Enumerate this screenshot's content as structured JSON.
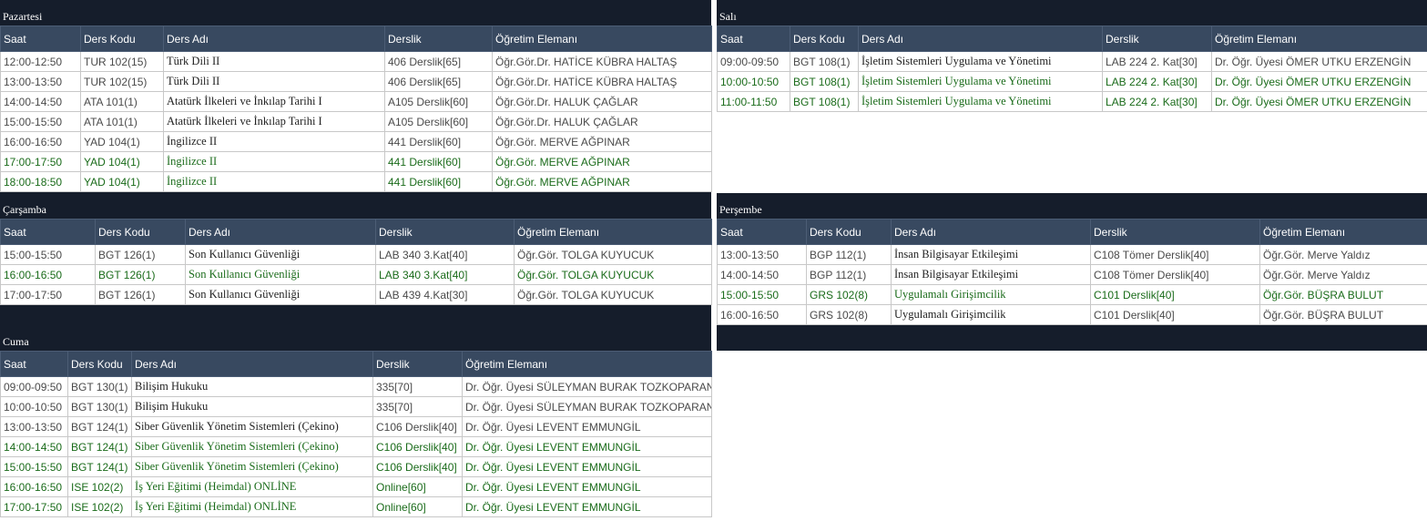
{
  "colors": {
    "title_bg": "#151d2b",
    "header_bg": "#384960",
    "active_text": "#1a6b1a",
    "normal_text": "#4a4a4a"
  },
  "headers": {
    "saat": "Saat",
    "kod": "Ders Kodu",
    "ad": "Ders Adı",
    "derslik": "Derslik",
    "ogretim": "Öğretim Elemanı"
  },
  "days": {
    "pazartesi": {
      "title": "Pazartesi",
      "rows": [
        {
          "saat": "12:00-12:50",
          "kod": "TUR 102(15)",
          "ad": "Türk Dili II",
          "derslik": "406 Derslik[65]",
          "ogretim": "Öğr.Gör.Dr. HATİCE KÜBRA HALTAŞ",
          "active": false
        },
        {
          "saat": "13:00-13:50",
          "kod": "TUR 102(15)",
          "ad": "Türk Dili II",
          "derslik": "406 Derslik[65]",
          "ogretim": "Öğr.Gör.Dr. HATİCE KÜBRA HALTAŞ",
          "active": false
        },
        {
          "saat": "14:00-14:50",
          "kod": "ATA 101(1)",
          "ad": "Atatürk İlkeleri ve İnkılap Tarihi I",
          "derslik": "A105 Derslik[60]",
          "ogretim": "Öğr.Gör.Dr. HALUK ÇAĞLAR",
          "active": false
        },
        {
          "saat": "15:00-15:50",
          "kod": "ATA 101(1)",
          "ad": "Atatürk İlkeleri ve İnkılap Tarihi I",
          "derslik": "A105 Derslik[60]",
          "ogretim": "Öğr.Gör.Dr. HALUK ÇAĞLAR",
          "active": false
        },
        {
          "saat": "16:00-16:50",
          "kod": "YAD 104(1)",
          "ad": "İngilizce II",
          "derslik": "441 Derslik[60]",
          "ogretim": "Öğr.Gör. MERVE AĞPINAR",
          "active": false
        },
        {
          "saat": "17:00-17:50",
          "kod": "YAD 104(1)",
          "ad": "İngilizce II",
          "derslik": "441 Derslik[60]",
          "ogretim": "Öğr.Gör. MERVE AĞPINAR",
          "active": true
        },
        {
          "saat": "18:00-18:50",
          "kod": "YAD 104(1)",
          "ad": "İngilizce II",
          "derslik": "441 Derslik[60]",
          "ogretim": "Öğr.Gör. MERVE AĞPINAR",
          "active": true
        }
      ]
    },
    "sali": {
      "title": "Salı",
      "rows": [
        {
          "saat": "09:00-09:50",
          "kod": "BGT 108(1)",
          "ad": "İşletim Sistemleri Uygulama ve Yönetimi",
          "derslik": "LAB 224 2. Kat[30]",
          "ogretim": "Dr. Öğr. Üyesi ÖMER UTKU ERZENGİN",
          "active": false
        },
        {
          "saat": "10:00-10:50",
          "kod": "BGT 108(1)",
          "ad": "İşletim Sistemleri Uygulama ve Yönetimi",
          "derslik": "LAB 224 2. Kat[30]",
          "ogretim": "Dr. Öğr. Üyesi ÖMER UTKU ERZENGİN",
          "active": true
        },
        {
          "saat": "11:00-11:50",
          "kod": "BGT 108(1)",
          "ad": "İşletim Sistemleri Uygulama ve Yönetimi",
          "derslik": "LAB 224 2. Kat[30]",
          "ogretim": "Dr. Öğr. Üyesi ÖMER UTKU ERZENGİN",
          "active": true
        }
      ]
    },
    "carsamba": {
      "title": "Çarşamba",
      "rows": [
        {
          "saat": "15:00-15:50",
          "kod": "BGT 126(1)",
          "ad": "Son Kullanıcı Güvenliği",
          "derslik": "LAB 340 3.Kat[40]",
          "ogretim": "Öğr.Gör. TOLGA KUYUCUK",
          "active": false
        },
        {
          "saat": "16:00-16:50",
          "kod": "BGT 126(1)",
          "ad": "Son Kullanıcı Güvenliği",
          "derslik": "LAB 340 3.Kat[40]",
          "ogretim": "Öğr.Gör. TOLGA KUYUCUK",
          "active": true
        },
        {
          "saat": "17:00-17:50",
          "kod": "BGT 126(1)",
          "ad": "Son Kullanıcı Güvenliği",
          "derslik": "LAB 439 4.Kat[30]",
          "ogretim": "Öğr.Gör. TOLGA KUYUCUK",
          "active": false
        }
      ]
    },
    "persembe": {
      "title": "Perşembe",
      "rows": [
        {
          "saat": "13:00-13:50",
          "kod": "BGP 112(1)",
          "ad": "İnsan Bilgisayar Etkileşimi",
          "derslik": "C108 Tömer Derslik[40]",
          "ogretim": "Öğr.Gör. Merve Yaldız",
          "active": false
        },
        {
          "saat": "14:00-14:50",
          "kod": "BGP 112(1)",
          "ad": "İnsan Bilgisayar Etkileşimi",
          "derslik": "C108 Tömer Derslik[40]",
          "ogretim": "Öğr.Gör. Merve Yaldız",
          "active": false
        },
        {
          "saat": "15:00-15:50",
          "kod": "GRS 102(8)",
          "ad": "Uygulamalı Girişimcilik",
          "derslik": "C101 Derslik[40]",
          "ogretim": "Öğr.Gör. BÜŞRA BULUT",
          "active": true
        },
        {
          "saat": "16:00-16:50",
          "kod": "GRS 102(8)",
          "ad": "Uygulamalı Girişimcilik",
          "derslik": "C101 Derslik[40]",
          "ogretim": "Öğr.Gör. BÜŞRA BULUT",
          "active": false
        }
      ]
    },
    "cuma": {
      "title": "Cuma",
      "rows": [
        {
          "saat": "09:00-09:50",
          "kod": "BGT 130(1)",
          "ad": "Bilişim Hukuku",
          "derslik": "335[70]",
          "ogretim": "Dr. Öğr. Üyesi SÜLEYMAN BURAK TOZKOPARAN",
          "active": false
        },
        {
          "saat": "10:00-10:50",
          "kod": "BGT 130(1)",
          "ad": "Bilişim Hukuku",
          "derslik": "335[70]",
          "ogretim": "Dr. Öğr. Üyesi SÜLEYMAN BURAK TOZKOPARAN",
          "active": false
        },
        {
          "saat": "13:00-13:50",
          "kod": "BGT 124(1)",
          "ad": "Siber Güvenlik Yönetim Sistemleri (Çekino)",
          "derslik": "C106 Derslik[40]",
          "ogretim": "Dr. Öğr. Üyesi LEVENT EMMUNGİL",
          "active": false
        },
        {
          "saat": "14:00-14:50",
          "kod": "BGT 124(1)",
          "ad": "Siber Güvenlik Yönetim Sistemleri (Çekino)",
          "derslik": "C106 Derslik[40]",
          "ogretim": "Dr. Öğr. Üyesi LEVENT EMMUNGİL",
          "active": true
        },
        {
          "saat": "15:00-15:50",
          "kod": "BGT 124(1)",
          "ad": "Siber Güvenlik Yönetim Sistemleri (Çekino)",
          "derslik": "C106 Derslik[40]",
          "ogretim": "Dr. Öğr. Üyesi LEVENT EMMUNGİL",
          "active": true
        },
        {
          "saat": "16:00-16:50",
          "kod": "ISE 102(2)",
          "ad": "İş Yeri Eğitimi (Heimdal) ONLİNE",
          "derslik": "Online[60]",
          "ogretim": "Dr. Öğr. Üyesi LEVENT EMMUNGİL",
          "active": true
        },
        {
          "saat": "17:00-17:50",
          "kod": "ISE 102(2)",
          "ad": "İş Yeri Eğitimi (Heimdal) ONLİNE",
          "derslik": "Online[60]",
          "ogretim": "Dr. Öğr. Üyesi LEVENT EMMUNGİL",
          "active": true
        }
      ]
    }
  }
}
